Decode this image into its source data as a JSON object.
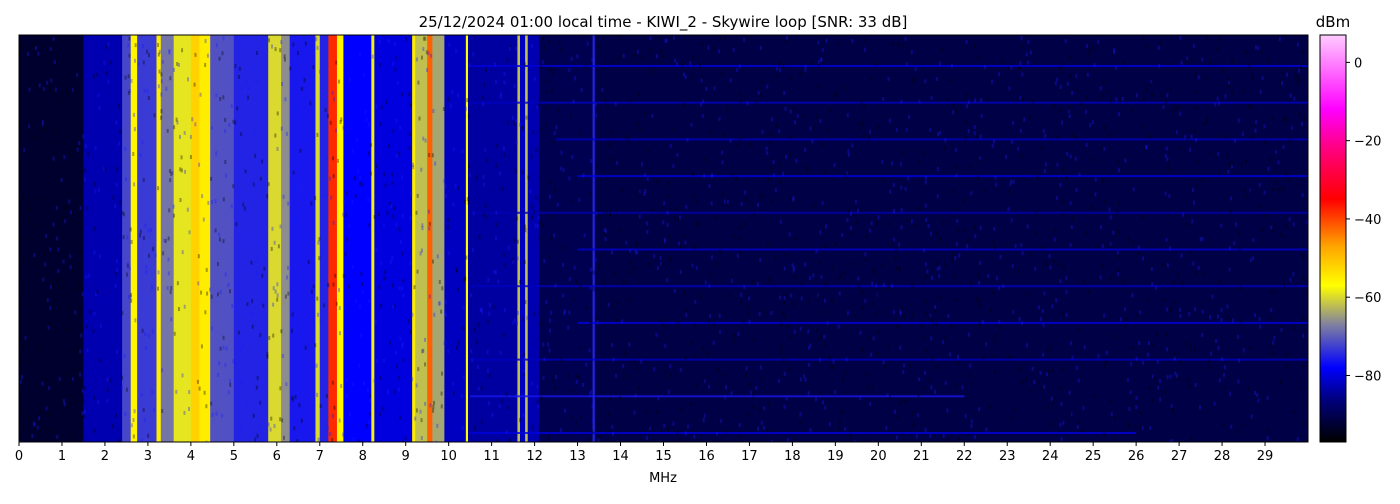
{
  "chart_data": {
    "type": "heatmap",
    "title": "25/12/2024 01:00 local time - KIWI_2 - Skywire loop [SNR: 33 dB]",
    "xlabel": "MHz",
    "ylabel": "",
    "xlim": [
      0,
      30
    ],
    "x_ticks": [
      "0",
      "1",
      "2",
      "3",
      "4",
      "5",
      "6",
      "7",
      "8",
      "9",
      "10",
      "11",
      "12",
      "13",
      "14",
      "15",
      "16",
      "17",
      "18",
      "19",
      "20",
      "21",
      "22",
      "23",
      "24",
      "25",
      "26",
      "27",
      "28",
      "29"
    ],
    "colorbar": {
      "label": "dBm",
      "range": [
        -97,
        7
      ],
      "ticks": [
        "0",
        "−20",
        "−40",
        "−60",
        "−80"
      ],
      "tick_values": [
        0,
        -20,
        -40,
        -60,
        -80
      ],
      "colormap_stops": [
        {
          "value": -97,
          "color": "#000000"
        },
        {
          "value": -86,
          "color": "#000080"
        },
        {
          "value": -78,
          "color": "#0000ff"
        },
        {
          "value": -67,
          "color": "#8080a0"
        },
        {
          "value": -57,
          "color": "#ffff00"
        },
        {
          "value": -47,
          "color": "#ffa500"
        },
        {
          "value": -35,
          "color": "#ff0000"
        },
        {
          "value": -22,
          "color": "#ff0080"
        },
        {
          "value": -12,
          "color": "#ff00ff"
        },
        {
          "value": 7,
          "color": "#ffccff"
        }
      ]
    },
    "bands": [
      {
        "from": 0,
        "to": 1.5,
        "dbm": -93
      },
      {
        "from": 1.5,
        "to": 2.4,
        "dbm": -83
      },
      {
        "from": 2.4,
        "to": 2.6,
        "dbm": -72
      },
      {
        "from": 2.6,
        "to": 2.75,
        "dbm": -56
      },
      {
        "from": 2.75,
        "to": 3.2,
        "dbm": -73
      },
      {
        "from": 3.2,
        "to": 3.3,
        "dbm": -55
      },
      {
        "from": 3.3,
        "to": 3.6,
        "dbm": -68
      },
      {
        "from": 3.6,
        "to": 4.0,
        "dbm": -59
      },
      {
        "from": 4.0,
        "to": 4.2,
        "dbm": -52
      },
      {
        "from": 4.2,
        "to": 4.45,
        "dbm": -55
      },
      {
        "from": 4.45,
        "to": 5.0,
        "dbm": -71
      },
      {
        "from": 5.0,
        "to": 5.8,
        "dbm": -75
      },
      {
        "from": 5.8,
        "to": 6.1,
        "dbm": -60
      },
      {
        "from": 6.1,
        "to": 6.3,
        "dbm": -66
      },
      {
        "from": 6.3,
        "to": 6.9,
        "dbm": -76
      },
      {
        "from": 6.9,
        "to": 7.0,
        "dbm": -60
      },
      {
        "from": 7.0,
        "to": 7.2,
        "dbm": -75
      },
      {
        "from": 7.2,
        "to": 7.4,
        "dbm": -38
      },
      {
        "from": 7.4,
        "to": 7.55,
        "dbm": -56
      },
      {
        "from": 7.55,
        "to": 8.2,
        "dbm": -78
      },
      {
        "from": 8.2,
        "to": 8.27,
        "dbm": -58
      },
      {
        "from": 8.27,
        "to": 9.15,
        "dbm": -80
      },
      {
        "from": 9.15,
        "to": 9.22,
        "dbm": -55
      },
      {
        "from": 9.22,
        "to": 9.5,
        "dbm": -62
      },
      {
        "from": 9.5,
        "to": 9.62,
        "dbm": -42
      },
      {
        "from": 9.62,
        "to": 9.9,
        "dbm": -64
      },
      {
        "from": 9.9,
        "to": 10.4,
        "dbm": -82
      },
      {
        "from": 10.4,
        "to": 10.45,
        "dbm": -57
      },
      {
        "from": 10.45,
        "to": 11.6,
        "dbm": -84
      },
      {
        "from": 11.6,
        "to": 11.66,
        "dbm": -62
      },
      {
        "from": 11.66,
        "to": 11.78,
        "dbm": -82
      },
      {
        "from": 11.78,
        "to": 11.84,
        "dbm": -62
      },
      {
        "from": 11.84,
        "to": 12.1,
        "dbm": -83
      },
      {
        "from": 12.1,
        "to": 13.35,
        "dbm": -90
      },
      {
        "from": 13.35,
        "to": 13.4,
        "dbm": -75
      },
      {
        "from": 13.4,
        "to": 30,
        "dbm": -91
      }
    ],
    "interference_lines": [
      {
        "from": 10.5,
        "to": 30,
        "dbm": -80
      },
      {
        "from": 10.5,
        "to": 30,
        "dbm": -82
      },
      {
        "from": 12.5,
        "to": 30,
        "dbm": -82
      },
      {
        "from": 13,
        "to": 30,
        "dbm": -80
      },
      {
        "from": 10.5,
        "to": 30,
        "dbm": -83
      },
      {
        "from": 13,
        "to": 30,
        "dbm": -81
      },
      {
        "from": 10.5,
        "to": 30,
        "dbm": -82
      },
      {
        "from": 13,
        "to": 30,
        "dbm": -80
      },
      {
        "from": 10.5,
        "to": 30,
        "dbm": -82
      },
      {
        "from": 10.5,
        "to": 22,
        "dbm": -76
      },
      {
        "from": 10.5,
        "to": 26,
        "dbm": -80
      }
    ]
  }
}
